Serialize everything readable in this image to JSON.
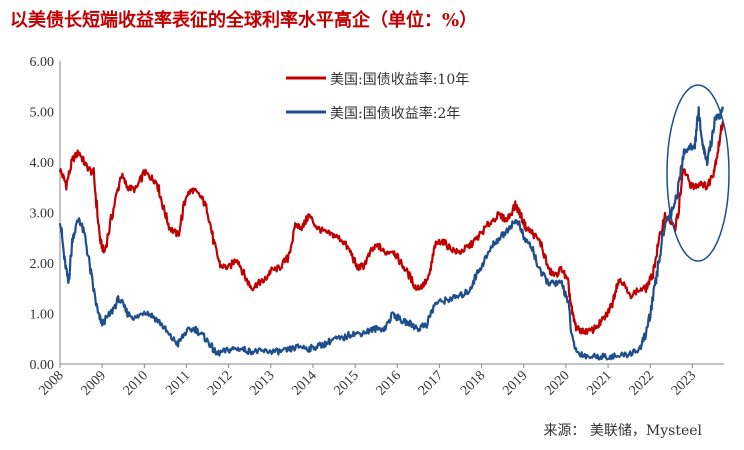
{
  "title": "以美债长短端收益率表征的全球利率水平高企（单位：%）",
  "source": "来源：  美联储，Mysteel",
  "chart_data": {
    "type": "line",
    "xlim": [
      2008.0,
      2023.75
    ],
    "ylim": [
      0,
      6
    ],
    "y_ticks": [
      "0.00",
      "1.00",
      "2.00",
      "3.00",
      "4.00",
      "5.00",
      "6.00"
    ],
    "x_ticks": [
      "2008",
      "2009",
      "2010",
      "2011",
      "2012",
      "2013",
      "2014",
      "2015",
      "2016",
      "2017",
      "2018",
      "2019",
      "2020",
      "2021",
      "2022",
      "2023"
    ],
    "grid": false,
    "legend_position": "top-right",
    "annotation": "ellipse highlighting 2023 yields",
    "series": [
      {
        "name": "美国:国债收益率:10年",
        "color": "#c00000",
        "x": [
          2008.0,
          2008.15,
          2008.3,
          2008.45,
          2008.6,
          2008.8,
          2008.95,
          2009.05,
          2009.25,
          2009.45,
          2009.6,
          2009.8,
          2010.0,
          2010.15,
          2010.3,
          2010.45,
          2010.6,
          2010.8,
          2011.0,
          2011.15,
          2011.35,
          2011.5,
          2011.65,
          2011.8,
          2012.0,
          2012.2,
          2012.4,
          2012.55,
          2012.7,
          2012.85,
          2013.0,
          2013.2,
          2013.4,
          2013.6,
          2013.75,
          2013.9,
          2014.1,
          2014.3,
          2014.5,
          2014.7,
          2014.9,
          2015.05,
          2015.2,
          2015.4,
          2015.55,
          2015.7,
          2015.9,
          2016.05,
          2016.25,
          2016.45,
          2016.6,
          2016.75,
          2016.9,
          2017.05,
          2017.25,
          2017.45,
          2017.65,
          2017.8,
          2018.0,
          2018.2,
          2018.4,
          2018.6,
          2018.8,
          2018.9,
          2019.05,
          2019.2,
          2019.4,
          2019.6,
          2019.75,
          2019.9,
          2020.05,
          2020.15,
          2020.25,
          2020.4,
          2020.6,
          2020.8,
          2020.95,
          2021.1,
          2021.2,
          2021.3,
          2021.5,
          2021.7,
          2021.9,
          2022.05,
          2022.2,
          2022.35,
          2022.5,
          2022.6,
          2022.8,
          2022.95,
          2023.05,
          2023.2,
          2023.35,
          2023.5,
          2023.6,
          2023.72
        ],
        "values": [
          3.85,
          3.55,
          4.05,
          4.2,
          3.95,
          3.75,
          2.45,
          2.2,
          3.0,
          3.75,
          3.5,
          3.45,
          3.8,
          3.7,
          3.6,
          3.1,
          2.7,
          2.55,
          3.35,
          3.45,
          3.3,
          3.05,
          2.4,
          1.95,
          1.9,
          2.1,
          1.7,
          1.5,
          1.6,
          1.65,
          1.85,
          1.9,
          2.1,
          2.75,
          2.7,
          2.95,
          2.7,
          2.6,
          2.55,
          2.45,
          2.2,
          1.9,
          1.95,
          2.25,
          2.35,
          2.2,
          2.25,
          2.05,
          1.8,
          1.5,
          1.55,
          1.7,
          2.35,
          2.45,
          2.3,
          2.2,
          2.3,
          2.4,
          2.6,
          2.8,
          2.95,
          2.85,
          3.15,
          3.0,
          2.7,
          2.6,
          2.4,
          1.85,
          1.75,
          1.9,
          1.6,
          1.0,
          0.7,
          0.65,
          0.65,
          0.8,
          0.95,
          1.2,
          1.55,
          1.7,
          1.35,
          1.45,
          1.5,
          1.75,
          2.4,
          2.95,
          2.8,
          2.65,
          3.85,
          3.55,
          3.5,
          3.6,
          3.5,
          3.8,
          4.2,
          4.8
        ]
      },
      {
        "name": "美国:国债收益率:2年",
        "color": "#1f4e8c",
        "x": [
          2008.0,
          2008.1,
          2008.2,
          2008.3,
          2008.45,
          2008.6,
          2008.75,
          2008.9,
          2009.0,
          2009.2,
          2009.4,
          2009.6,
          2009.8,
          2010.0,
          2010.2,
          2010.4,
          2010.6,
          2010.8,
          2011.0,
          2011.2,
          2011.4,
          2011.55,
          2011.7,
          2011.9,
          2012.1,
          2012.3,
          2012.5,
          2012.7,
          2012.9,
          2013.1,
          2013.3,
          2013.5,
          2013.7,
          2013.9,
          2014.1,
          2014.3,
          2014.5,
          2014.7,
          2014.9,
          2015.1,
          2015.3,
          2015.5,
          2015.7,
          2015.9,
          2016.1,
          2016.3,
          2016.5,
          2016.7,
          2016.9,
          2017.1,
          2017.3,
          2017.5,
          2017.7,
          2017.9,
          2018.1,
          2018.3,
          2018.5,
          2018.7,
          2018.85,
          2019.0,
          2019.2,
          2019.4,
          2019.6,
          2019.75,
          2019.9,
          2020.05,
          2020.15,
          2020.25,
          2020.5,
          2020.75,
          2021.0,
          2021.25,
          2021.5,
          2021.75,
          2021.9,
          2022.05,
          2022.2,
          2022.35,
          2022.5,
          2022.65,
          2022.8,
          2022.95,
          2023.05,
          2023.15,
          2023.25,
          2023.35,
          2023.45,
          2023.55,
          2023.65,
          2023.72
        ],
        "values": [
          2.9,
          2.1,
          1.6,
          2.5,
          2.9,
          2.5,
          1.7,
          1.0,
          0.8,
          1.0,
          1.3,
          1.0,
          0.9,
          1.05,
          0.95,
          0.8,
          0.55,
          0.4,
          0.65,
          0.7,
          0.55,
          0.4,
          0.2,
          0.25,
          0.3,
          0.3,
          0.25,
          0.25,
          0.25,
          0.25,
          0.25,
          0.3,
          0.35,
          0.3,
          0.35,
          0.4,
          0.5,
          0.5,
          0.6,
          0.6,
          0.65,
          0.7,
          0.7,
          1.0,
          0.85,
          0.8,
          0.7,
          0.8,
          1.2,
          1.25,
          1.3,
          1.35,
          1.45,
          1.8,
          2.1,
          2.4,
          2.55,
          2.75,
          2.85,
          2.5,
          2.3,
          1.8,
          1.6,
          1.6,
          1.6,
          1.25,
          0.5,
          0.25,
          0.15,
          0.15,
          0.15,
          0.15,
          0.2,
          0.3,
          0.6,
          1.2,
          2.0,
          2.8,
          3.0,
          3.4,
          4.2,
          4.3,
          4.3,
          5.0,
          4.3,
          4.0,
          4.4,
          4.9,
          4.9,
          5.1
        ]
      }
    ]
  }
}
